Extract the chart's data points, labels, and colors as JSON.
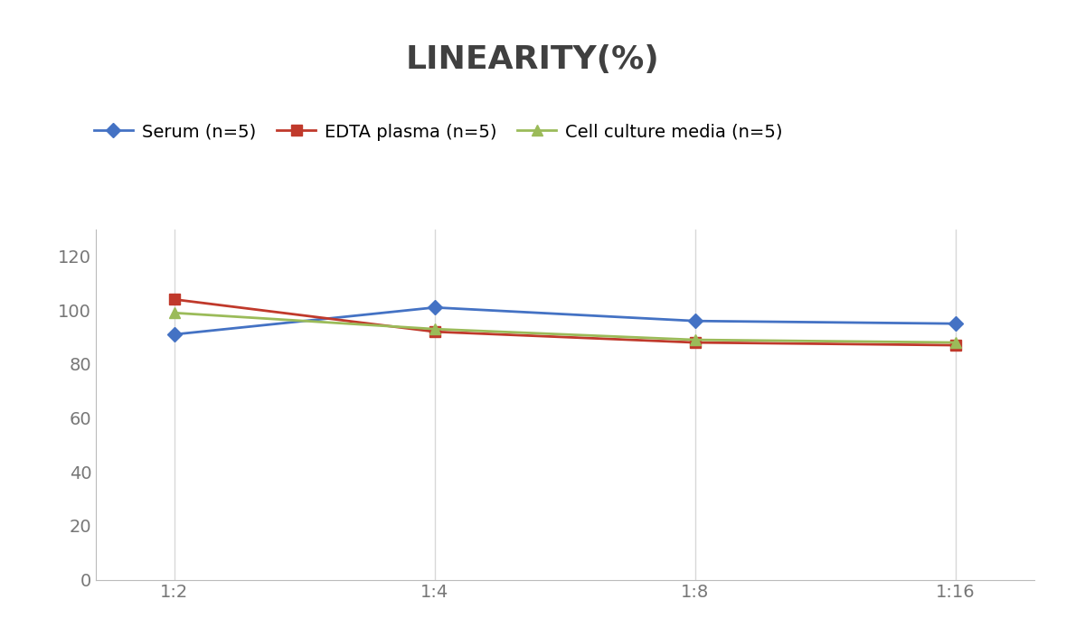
{
  "title": "LINEARITY(%)",
  "x_labels": [
    "1:2",
    "1:4",
    "1:8",
    "1:16"
  ],
  "x_positions": [
    0,
    1,
    2,
    3
  ],
  "series": [
    {
      "label": "Serum (n=5)",
      "values": [
        91,
        101,
        96,
        95
      ],
      "color": "#4472C4",
      "marker": "D",
      "markersize": 8,
      "linewidth": 2
    },
    {
      "label": "EDTA plasma (n=5)",
      "values": [
        104,
        92,
        88,
        87
      ],
      "color": "#C0392B",
      "marker": "s",
      "markersize": 8,
      "linewidth": 2
    },
    {
      "label": "Cell culture media (n=5)",
      "values": [
        99,
        93,
        89,
        88
      ],
      "color": "#9BBB59",
      "marker": "^",
      "markersize": 8,
      "linewidth": 2
    }
  ],
  "ylim": [
    0,
    130
  ],
  "yticks": [
    0,
    20,
    40,
    60,
    80,
    100,
    120
  ],
  "background_color": "#FFFFFF",
  "grid_color": "#D8D8D8",
  "title_fontsize": 26,
  "tick_fontsize": 14,
  "legend_fontsize": 14
}
